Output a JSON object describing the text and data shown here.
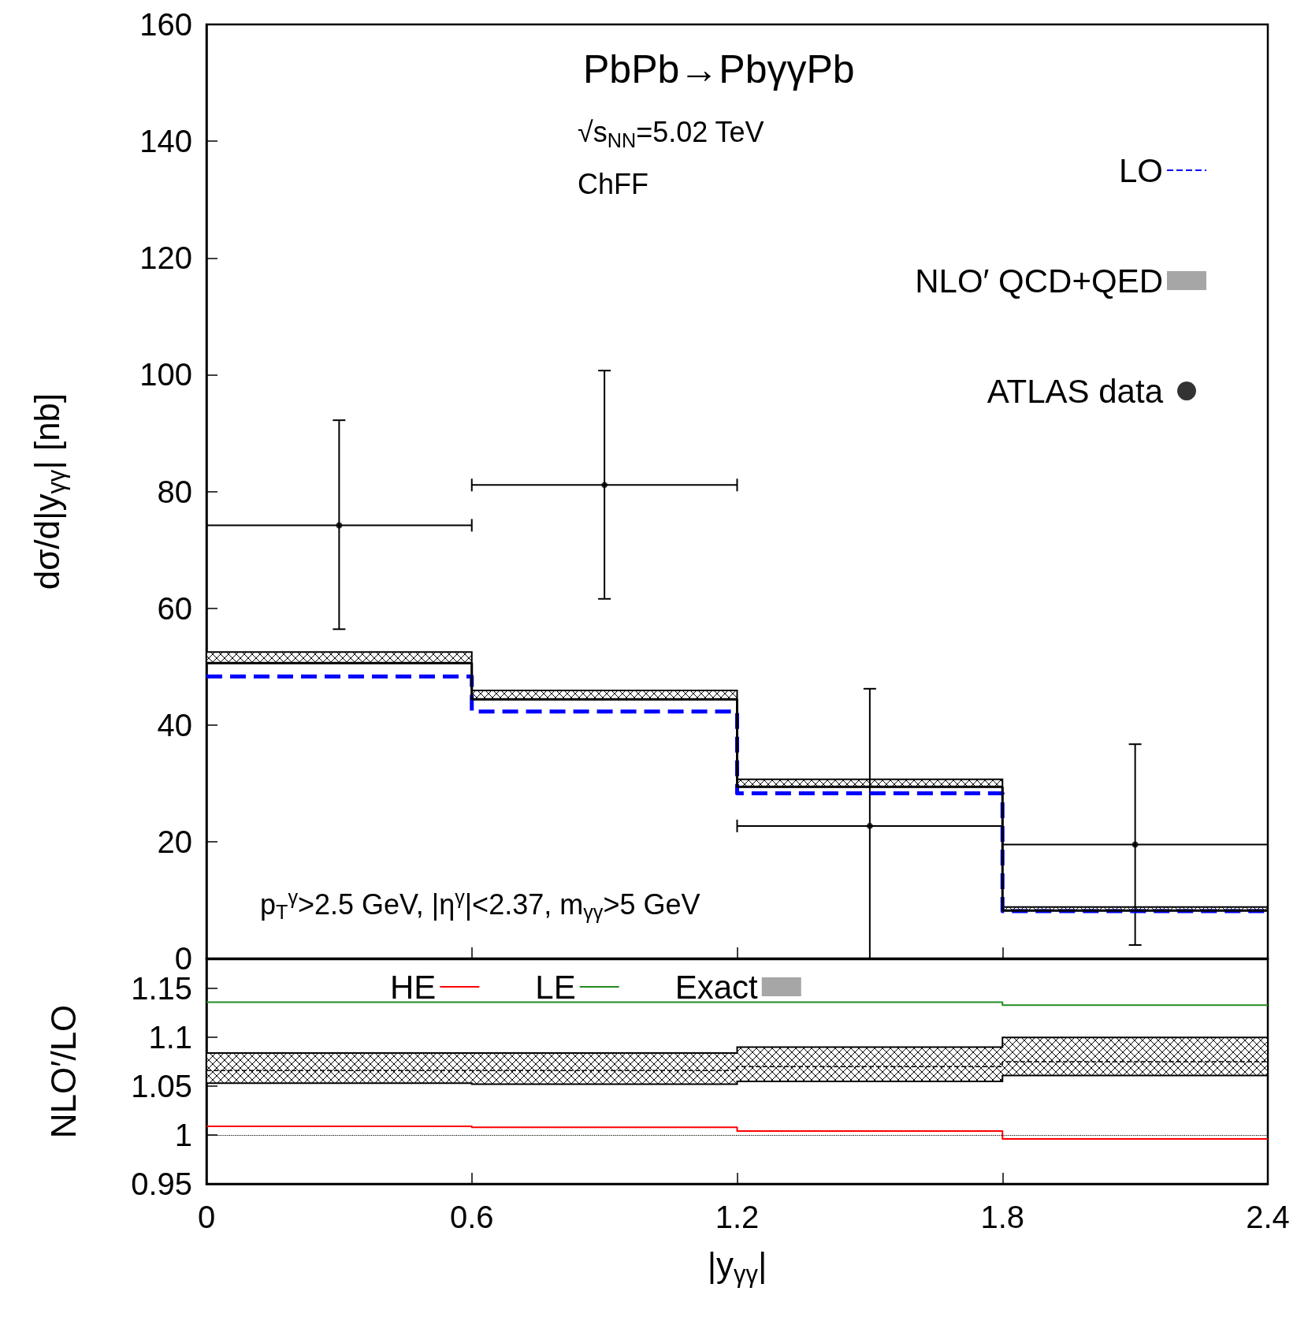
{
  "chart_data": [
    {
      "type": "step",
      "title": "PbPb→PbγγPb",
      "ylabel": "dσ/d|y$_{γγ}$| [nb]",
      "annotations": [
        "√s$_{NN}$=5.02 TeV",
        "ChFF",
        "p$_{T}$$^{γ}$>2.5 GeV, |η$^{γ}$|<2.37, m$_{γγ}$>5 GeV"
      ],
      "x": [
        0,
        0.6,
        1.2,
        1.8,
        2.4
      ],
      "xlim": [
        0,
        2.4
      ],
      "xticks": [
        0,
        0.6,
        1.2,
        1.8,
        2.4
      ],
      "ylim": [
        0,
        160
      ],
      "yticks": [
        0,
        20,
        40,
        60,
        80,
        100,
        120,
        140,
        160
      ],
      "tick_labels": "y",
      "legend": "top right",
      "grid": false,
      "series": [
        {
          "name": "LO",
          "color": "#0000ff",
          "line_style": "dashed",
          "values": [
            48.3,
            42.3,
            28.3,
            8.1,
            8.1
          ]
        },
        {
          "name": "NLO′ QCD+QED",
          "color": "#000000",
          "values": [
            50.6,
            44.4,
            29.4,
            8.2,
            8.2
          ],
          "lower": [
            50.6,
            44.4,
            29.4,
            8.2,
            8.2
          ],
          "upper": [
            52.5,
            45.9,
            30.7,
            8.8,
            8.8
          ]
        },
        {
          "name": "ATLAS data",
          "type": "scatter",
          "color": "#000000",
          "marker": "circle",
          "x": [
            0.3,
            0.9,
            1.5,
            2.1
          ],
          "values": [
            74.2,
            81.1,
            22.7,
            19.5
          ],
          "errors": [
            [
              56.4,
              92.2
            ],
            [
              61.6,
              100.7
            ],
            [
              0,
              46.2
            ],
            [
              2.3,
              36.7
            ]
          ],
          "xerrors": [
            0.3,
            0.3,
            0.3,
            0.3
          ]
        }
      ]
    },
    {
      "type": "step",
      "xlabel": "|y$_{γγ}$|",
      "ylabel": "NLO′/LO",
      "x": [
        0,
        0.6,
        1.2,
        1.8,
        2.4
      ],
      "xlim": [
        0,
        2.4
      ],
      "xticks": [
        0,
        0.6,
        1.2,
        1.8,
        2.4
      ],
      "ylim": [
        0.95,
        1.18
      ],
      "yticks": [
        0.95,
        1,
        1.05,
        1.1,
        1.15
      ],
      "legend": "top",
      "grid": false,
      "ref_lines": [
        {
          "axis": "y",
          "value": 1,
          "line_style": "dotted",
          "color": "#000000"
        }
      ],
      "series": [
        {
          "name": "HE",
          "color": "#ff0000",
          "values": [
            1.009,
            1.008,
            1.004,
            0.996,
            0.996
          ]
        },
        {
          "name": "LE",
          "color": "#228b22",
          "values": [
            1.136,
            1.136,
            1.136,
            1.133,
            1.133
          ]
        },
        {
          "name": "Exact",
          "color": "#000000",
          "line_style": "dashed",
          "values": [
            1.066,
            1.066,
            1.07,
            1.075,
            1.075
          ],
          "lower": [
            1.053,
            1.052,
            1.055,
            1.061,
            1.061
          ],
          "upper": [
            1.084,
            1.084,
            1.09,
            1.1,
            1.1
          ]
        }
      ]
    }
  ]
}
